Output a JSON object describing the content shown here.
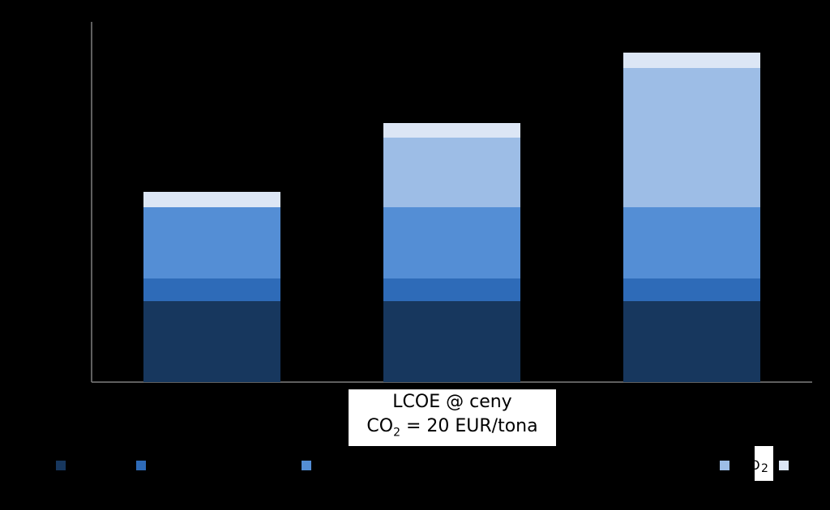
{
  "chart_data": {
    "type": "bar",
    "stacked": true,
    "categories": [
      "",
      "",
      ""
    ],
    "series": [
      {
        "color": "#17375e",
        "values": [
          100,
          100,
          100
        ]
      },
      {
        "color": "#2e6bb8",
        "values": [
          28,
          28,
          28
        ]
      },
      {
        "color": "#548ed5",
        "values": [
          88,
          88,
          88
        ]
      },
      {
        "color": "#9dbde6",
        "values": [
          0,
          86,
          172
        ]
      },
      {
        "color": "#dce6f5",
        "values": [
          19,
          18,
          19
        ]
      }
    ],
    "ylim": [
      0,
      445
    ],
    "grid": false,
    "legend_position": "bottom"
  },
  "annotation": {
    "line1": "LCOE @ ceny",
    "line2_prefix": "CO",
    "line2_sub": "2",
    "line2_suffix": " = 20 EUR/tona"
  },
  "legend_fragment": {
    "text": "O",
    "sub": "2"
  }
}
